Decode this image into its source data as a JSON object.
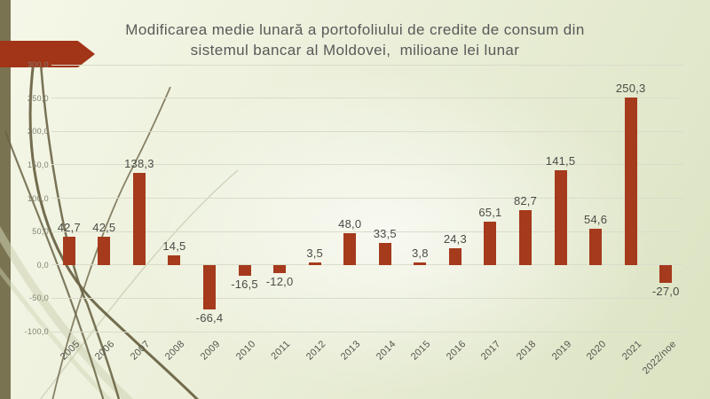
{
  "slide": {
    "title_line1": "Modificarea medie lunară a portofoliului de credite de consum din",
    "title_line2": "sistemul bancar al Moldovei,  milioane lei lunar"
  },
  "theme": {
    "background_top": "#f5f7e8",
    "background_bottom": "#dbe3c2",
    "left_stripe_color": "#7a7352",
    "arrow_color": "#a23418",
    "bar_color": "#a53a1c",
    "gridline_color": "#d9dcca",
    "title_color": "#595959",
    "y_tick_color": "#80806f",
    "x_tick_color": "#55554e",
    "data_label_color": "#4b4b46",
    "decor_dark_color": "#6b6446",
    "decor_pale_color": "#cdd2b2"
  },
  "chart_data": {
    "type": "bar",
    "title": "Modificarea medie lunară a portofoliului de credite de consum din sistemul bancar al Moldovei,  milioane lei lunar",
    "xlabel": "",
    "ylabel": "",
    "categories": [
      "2005",
      "2006",
      "2007",
      "2008",
      "2009",
      "2010",
      "2011",
      "2012",
      "2013",
      "2014",
      "2015",
      "2016",
      "2017",
      "2018",
      "2019",
      "2020",
      "2021",
      "2022/noe"
    ],
    "values": [
      42.7,
      42.5,
      138.3,
      14.5,
      -66.4,
      -16.5,
      -12.0,
      3.5,
      48.0,
      33.5,
      3.8,
      24.3,
      65.1,
      82.7,
      141.5,
      54.6,
      250.3,
      -27.0
    ],
    "value_labels": [
      "42,7",
      "42,5",
      "138,3",
      "14,5",
      "-66,4",
      "-16,5",
      "-12,0",
      "3,5",
      "48,0",
      "33,5",
      "3,8",
      "24,3",
      "65,1",
      "82,7",
      "141,5",
      "54,6",
      "250,3",
      "-27,0"
    ],
    "y_ticks": [
      {
        "value": 300,
        "label": "300,0"
      },
      {
        "value": 250,
        "label": "250,0"
      },
      {
        "value": 200,
        "label": "200,0"
      },
      {
        "value": 150,
        "label": "150,0"
      },
      {
        "value": 100,
        "label": "100,0"
      },
      {
        "value": 50,
        "label": "50,0"
      },
      {
        "value": 0,
        "label": "0,0"
      },
      {
        "value": -50,
        "label": "-50,0"
      },
      {
        "value": -100,
        "label": "-100,0"
      }
    ],
    "ylim": [
      -100,
      300
    ],
    "grid": true,
    "legend": "none",
    "bar_color": "#a53a1c"
  }
}
